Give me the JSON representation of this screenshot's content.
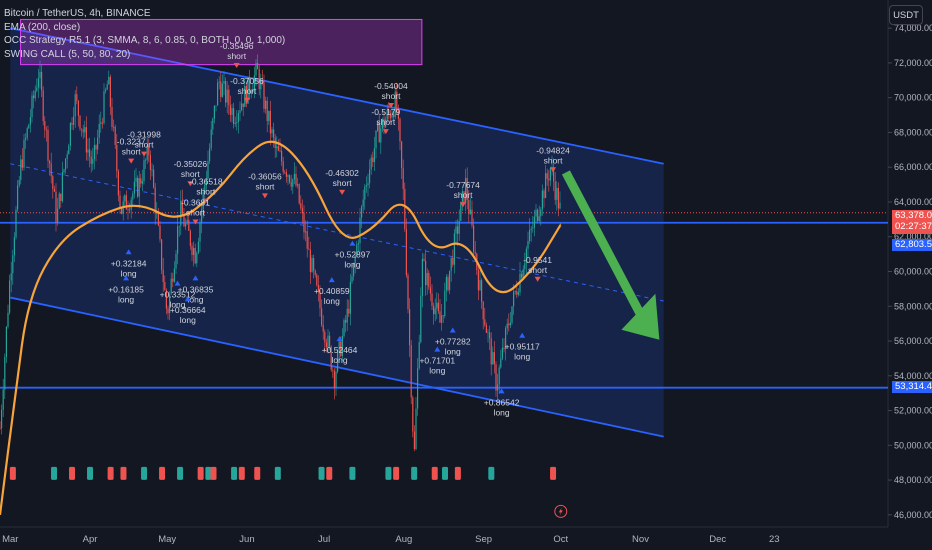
{
  "legend": {
    "symbol": "Bitcoin / TetherUS, 4h, BINANCE",
    "ema": "EMA (200, close)",
    "strategy": "OCC Strategy R5.1 (3, SMMA, 8, 6, 0.85, 0, BOTH, 0, 0, 1,000)",
    "swing": "SWING CALL (5, 50, 80, 20)"
  },
  "currency_button": "USDT",
  "price_tags": {
    "current": "63,378.00",
    "countdown": "02:27:37",
    "hline_upper": "62,803.56",
    "hline_lower": "53,314.48"
  },
  "colors": {
    "background": "#131722",
    "channel": "#2962ff",
    "ema": "#f7a43b",
    "bull": "#26a69a",
    "bear": "#ef5350",
    "arrow": "#4caf50",
    "strategy_box": "#e040fb"
  },
  "chart_data": {
    "type": "candlestick",
    "title": "Bitcoin / TetherUS, 4h, BINANCE",
    "x_ticks": [
      "Mar",
      "Apr",
      "May",
      "Jun",
      "Jul",
      "Aug",
      "Sep",
      "Oct",
      "Nov",
      "Dec",
      "23"
    ],
    "y_ticks": [
      "46,000.00",
      "48,000.00",
      "50,000.00",
      "52,000.00",
      "54,000.00",
      "56,000.00",
      "58,000.00",
      "60,000.00",
      "62,000.00",
      "64,000.00",
      "66,000.00",
      "68,000.00",
      "70,000.00",
      "72,000.00",
      "74,000.00"
    ],
    "ylim": [
      45300,
      75600
    ],
    "price_path": [
      {
        "t": "2024-02-26",
        "p": 51000
      },
      {
        "t": "2024-03-01",
        "p": 60000
      },
      {
        "t": "2024-03-05",
        "p": 66000
      },
      {
        "t": "2024-03-12",
        "p": 71500
      },
      {
        "t": "2024-03-19",
        "p": 63000
      },
      {
        "t": "2024-03-26",
        "p": 70000
      },
      {
        "t": "2024-04-02",
        "p": 66000
      },
      {
        "t": "2024-04-08",
        "p": 71000
      },
      {
        "t": "2024-04-13",
        "p": 63500
      },
      {
        "t": "2024-04-20",
        "p": 65000
      },
      {
        "t": "2024-04-24",
        "p": 67000
      },
      {
        "t": "2024-05-01",
        "p": 57500
      },
      {
        "t": "2024-05-06",
        "p": 63500
      },
      {
        "t": "2024-05-12",
        "p": 61000
      },
      {
        "t": "2024-05-21",
        "p": 71000
      },
      {
        "t": "2024-05-27",
        "p": 69000
      },
      {
        "t": "2024-06-05",
        "p": 71500
      },
      {
        "t": "2024-06-12",
        "p": 67000
      },
      {
        "t": "2024-06-20",
        "p": 65000
      },
      {
        "t": "2024-06-25",
        "p": 61000
      },
      {
        "t": "2024-07-05",
        "p": 54000
      },
      {
        "t": "2024-07-10",
        "p": 57500
      },
      {
        "t": "2024-07-17",
        "p": 65000
      },
      {
        "t": "2024-07-22",
        "p": 68000
      },
      {
        "t": "2024-07-29",
        "p": 69800
      },
      {
        "t": "2024-08-01",
        "p": 64000
      },
      {
        "t": "2024-08-05",
        "p": 49200
      },
      {
        "t": "2024-08-08",
        "p": 60500
      },
      {
        "t": "2024-08-15",
        "p": 57000
      },
      {
        "t": "2024-08-25",
        "p": 65000
      },
      {
        "t": "2024-08-31",
        "p": 58500
      },
      {
        "t": "2024-09-06",
        "p": 53500
      },
      {
        "t": "2024-09-12",
        "p": 58000
      },
      {
        "t": "2024-09-18",
        "p": 61500
      },
      {
        "t": "2024-09-27",
        "p": 66000
      },
      {
        "t": "2024-10-01",
        "p": 63378
      }
    ],
    "ema_path": [
      {
        "t": "2024-02-26",
        "p": 46000
      },
      {
        "t": "2024-03-03",
        "p": 53000
      },
      {
        "t": "2024-03-08",
        "p": 58500
      },
      {
        "t": "2024-03-20",
        "p": 61800
      },
      {
        "t": "2024-04-05",
        "p": 63300
      },
      {
        "t": "2024-04-20",
        "p": 64000
      },
      {
        "t": "2024-05-05",
        "p": 62800
      },
      {
        "t": "2024-05-20",
        "p": 64500
      },
      {
        "t": "2024-06-01",
        "p": 66800
      },
      {
        "t": "2024-06-12",
        "p": 67800
      },
      {
        "t": "2024-06-25",
        "p": 65800
      },
      {
        "t": "2024-07-08",
        "p": 61600
      },
      {
        "t": "2024-07-20",
        "p": 62400
      },
      {
        "t": "2024-08-01",
        "p": 64500
      },
      {
        "t": "2024-08-12",
        "p": 61000
      },
      {
        "t": "2024-08-25",
        "p": 62000
      },
      {
        "t": "2024-09-06",
        "p": 58200
      },
      {
        "t": "2024-09-20",
        "p": 60000
      },
      {
        "t": "2024-10-01",
        "p": 62700
      }
    ],
    "channel": {
      "upper": [
        {
          "t": "2024-03-01",
          "p": 74000
        },
        {
          "t": "2024-11-10",
          "p": 66200
        }
      ],
      "lower": [
        {
          "t": "2024-03-01",
          "p": 58500
        },
        {
          "t": "2024-11-10",
          "p": 50500
        }
      ],
      "mid": [
        {
          "t": "2024-03-01",
          "p": 66200
        },
        {
          "t": "2024-11-10",
          "p": 58300
        }
      ]
    },
    "horizontal_lines": [
      62803.56,
      53314.48
    ],
    "current_price": 63378.0,
    "signal_labels": [
      {
        "t": "2024-05-28",
        "p": 72800,
        "text": "-0.35496",
        "kind": "short"
      },
      {
        "t": "2024-07-27",
        "p": 70500,
        "text": "-0.54004",
        "kind": "short"
      },
      {
        "t": "2024-07-25",
        "p": 69000,
        "text": "-0.5179",
        "kind": "short"
      },
      {
        "t": "2024-09-28",
        "p": 66800,
        "text": "-0.94824",
        "kind": "short"
      },
      {
        "t": "2024-08-24",
        "p": 64800,
        "text": "-0.77674",
        "kind": "short"
      },
      {
        "t": "2024-04-17",
        "p": 67300,
        "text": "-0.3237",
        "kind": "short"
      },
      {
        "t": "2024-04-22",
        "p": 67700,
        "text": "-0.31998",
        "kind": "short"
      },
      {
        "t": "2024-05-10",
        "p": 66000,
        "text": "-0.35026",
        "kind": "short"
      },
      {
        "t": "2024-05-16",
        "p": 65000,
        "text": "-0.36518",
        "kind": "short"
      },
      {
        "t": "2024-05-12",
        "p": 63800,
        "text": "-0.3681",
        "kind": "short"
      },
      {
        "t": "2024-07-08",
        "p": 65500,
        "text": "-0.46302",
        "kind": "short"
      },
      {
        "t": "2024-06-01",
        "p": 70800,
        "text": "-0.37056",
        "kind": "short"
      },
      {
        "t": "2024-04-16",
        "p": 60300,
        "text": "+0.32184",
        "kind": "long"
      },
      {
        "t": "2024-04-15",
        "p": 58800,
        "text": "+0.16185",
        "kind": "long"
      },
      {
        "t": "2024-05-05",
        "p": 58500,
        "text": "+0.33512",
        "kind": "long"
      },
      {
        "t": "2024-05-12",
        "p": 58800,
        "text": "+0.36835",
        "kind": "long"
      },
      {
        "t": "2024-05-09",
        "p": 57600,
        "text": "+0.36664",
        "kind": "long"
      },
      {
        "t": "2024-06-08",
        "p": 65300,
        "text": "-0.36056",
        "kind": "short"
      },
      {
        "t": "2024-07-12",
        "p": 60800,
        "text": "+0.52897",
        "kind": "long"
      },
      {
        "t": "2024-07-04",
        "p": 58700,
        "text": "+0.40859",
        "kind": "long"
      },
      {
        "t": "2024-07-07",
        "p": 55300,
        "text": "+0.52464",
        "kind": "long"
      },
      {
        "t": "2024-08-20",
        "p": 55800,
        "text": "+0.77282",
        "kind": "long"
      },
      {
        "t": "2024-08-14",
        "p": 54700,
        "text": "+0.71701",
        "kind": "long"
      },
      {
        "t": "2024-09-22",
        "p": 60500,
        "text": "-0.9541",
        "kind": "short"
      },
      {
        "t": "2024-09-16",
        "p": 55500,
        "text": "+0.95117",
        "kind": "long"
      },
      {
        "t": "2024-09-08",
        "p": 52300,
        "text": "+0.86542",
        "kind": "long"
      }
    ],
    "bottom_markers": [
      {
        "t": "2024-03-02",
        "kind": "bear"
      },
      {
        "t": "2024-03-18",
        "kind": "bull"
      },
      {
        "t": "2024-03-25",
        "kind": "bear"
      },
      {
        "t": "2024-04-01",
        "kind": "bull"
      },
      {
        "t": "2024-04-09",
        "kind": "bear"
      },
      {
        "t": "2024-04-14",
        "kind": "bear"
      },
      {
        "t": "2024-04-22",
        "kind": "bull"
      },
      {
        "t": "2024-04-29",
        "kind": "bear"
      },
      {
        "t": "2024-05-06",
        "kind": "bull"
      },
      {
        "t": "2024-05-14",
        "kind": "bear"
      },
      {
        "t": "2024-05-17",
        "kind": "bull"
      },
      {
        "t": "2024-05-19",
        "kind": "bear"
      },
      {
        "t": "2024-05-27",
        "kind": "bull"
      },
      {
        "t": "2024-05-30",
        "kind": "bear"
      },
      {
        "t": "2024-06-05",
        "kind": "bear"
      },
      {
        "t": "2024-06-13",
        "kind": "bull"
      },
      {
        "t": "2024-06-30",
        "kind": "bull"
      },
      {
        "t": "2024-07-03",
        "kind": "bear"
      },
      {
        "t": "2024-07-12",
        "kind": "bull"
      },
      {
        "t": "2024-07-26",
        "kind": "bull"
      },
      {
        "t": "2024-07-29",
        "kind": "bear"
      },
      {
        "t": "2024-08-05",
        "kind": "bull"
      },
      {
        "t": "2024-08-13",
        "kind": "bear"
      },
      {
        "t": "2024-08-17",
        "kind": "bull"
      },
      {
        "t": "2024-08-22",
        "kind": "bear"
      },
      {
        "t": "2024-09-04",
        "kind": "bull"
      },
      {
        "t": "2024-09-28",
        "kind": "bear"
      }
    ]
  }
}
